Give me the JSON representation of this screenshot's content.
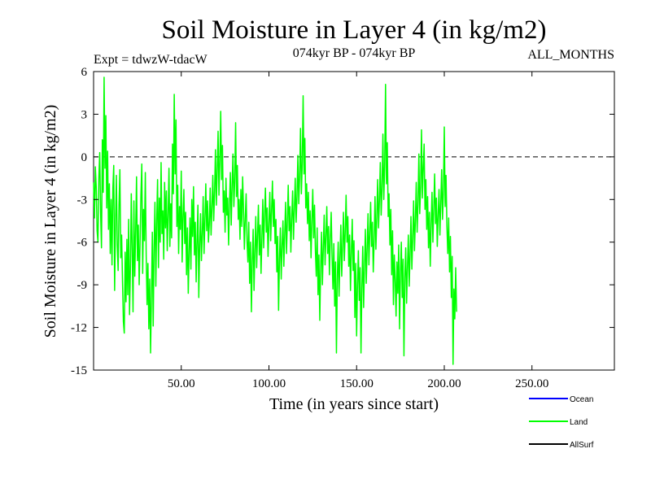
{
  "chart_data": {
    "type": "line",
    "title": "Soil Moisture in Layer 4 (in kg/m2)",
    "subtitle": "074kyr BP - 074kyr BP",
    "experiment": "Expt = tdwzW-tdacW",
    "season": "ALL_MONTHS",
    "xlabel": "Time (in years since start)",
    "ylabel": "Soil Moisture in Layer 4 (in kg/m2)",
    "xlim": [
      0,
      297
    ],
    "ylim": [
      -15,
      6
    ],
    "x_ticks": [
      50,
      100,
      150,
      200,
      250
    ],
    "x_tick_labels": [
      "50.00",
      "100.00",
      "150.00",
      "200.00",
      "250.00"
    ],
    "y_ticks": [
      6,
      3,
      0,
      -3,
      -6,
      -9,
      -12,
      -15
    ],
    "y_tick_labels": [
      "6",
      "3",
      "0",
      "-3",
      "-6",
      "-9",
      "-12",
      "-15"
    ],
    "zero_line": 0,
    "legend_position": "bottom-right",
    "series": [
      {
        "name": "Ocean",
        "color": "#0000ff",
        "values": []
      },
      {
        "name": "Land",
        "color": "#00ff00",
        "x_start": 0,
        "x_step": 0.5,
        "values": [
          -1.8,
          -4.3,
          -0.7,
          -2.1,
          -5.2,
          -6.0,
          -1.5,
          0.3,
          -3.9,
          -6.4,
          1.2,
          -2.5,
          5.6,
          -0.8,
          2.9,
          -3.6,
          0.4,
          -5.1,
          -1.9,
          -6.8,
          -3.0,
          -7.6,
          -2.2,
          -0.6,
          -9.4,
          -4.7,
          -1.3,
          -6.2,
          -8.0,
          -3.4,
          -0.9,
          -7.1,
          -5.5,
          -8.8,
          -11.6,
          -12.4,
          -6.7,
          -10.2,
          -5.8,
          -9.7,
          -4.4,
          -11.1,
          -7.9,
          -2.6,
          -6.5,
          -10.9,
          -3.1,
          -8.4,
          -5.2,
          -1.4,
          -7.3,
          -4.8,
          -9.0,
          -6.1,
          -2.7,
          -0.5,
          -8.2,
          -3.7,
          -5.9,
          -1.1,
          -6.9,
          -10.4,
          -7.5,
          -12.1,
          -8.6,
          -13.8,
          -9.8,
          -5.3,
          -11.9,
          -6.4,
          -3.2,
          -9.1,
          -4.5,
          -1.6,
          -7.8,
          -2.9,
          -6.0,
          -0.4,
          -5.4,
          -3.8,
          -7.2,
          -1.8,
          -5.0,
          -2.4,
          -6.6,
          -4.1,
          -0.8,
          -6.3,
          -3.3,
          -5.7,
          0.9,
          -2.6,
          4.4,
          -1.2,
          2.6,
          -4.9,
          -2.0,
          -6.8,
          -3.5,
          -5.1,
          -1.0,
          -7.4,
          -4.2,
          -2.3,
          -6.1,
          -3.9,
          -8.3,
          -5.0,
          -9.6,
          -6.7,
          -4.3,
          -7.9,
          -3.0,
          -5.6,
          -2.1,
          -6.9,
          -4.6,
          -8.8,
          -5.9,
          -3.4,
          -9.9,
          -6.2,
          -4.0,
          -7.3,
          -5.4,
          -2.8,
          -6.8,
          -4.4,
          -1.9,
          -5.2,
          -3.1,
          -6.0,
          -4.7,
          -2.2,
          -5.5,
          -3.6,
          -1.3,
          -4.5,
          -2.5,
          0.5,
          -3.4,
          -1.0,
          1.8,
          -2.7,
          -0.3,
          3.2,
          -1.6,
          0.8,
          -3.9,
          -2.4,
          -5.3,
          -1.5,
          -4.1,
          -2.9,
          -6.2,
          -3.3,
          -1.1,
          -4.8,
          -2.0,
          0.2,
          -3.5,
          -1.7,
          2.4,
          -2.8,
          -0.6,
          -4.4,
          -3.0,
          -5.8,
          -2.3,
          -4.9,
          -1.4,
          -3.7,
          -6.5,
          -4.3,
          -2.6,
          -5.9,
          -7.4,
          -4.6,
          -8.9,
          -6.0,
          -10.9,
          -7.3,
          -5.1,
          -9.4,
          -6.6,
          -4.2,
          -7.8,
          -5.5,
          -3.4,
          -6.9,
          -4.8,
          -8.2,
          -5.7,
          -3.0,
          -6.4,
          -4.1,
          -2.2,
          -5.3,
          -3.6,
          -7.0,
          -4.7,
          -2.5,
          -5.9,
          -3.8,
          -1.7,
          -4.9,
          -3.0,
          -6.1,
          -4.4,
          -8.1,
          -5.6,
          -10.8,
          -7.2,
          -5.0,
          -8.6,
          -6.3,
          -4.5,
          -7.7,
          -5.4,
          -3.2,
          -6.8,
          -4.6,
          -2.0,
          -5.2,
          -3.5,
          -6.7,
          -4.3,
          -2.4,
          -5.8,
          -3.7,
          -1.5,
          -4.6,
          -2.8,
          0.1,
          -3.3,
          -1.4,
          2.0,
          -2.6,
          -0.5,
          4.3,
          -1.2,
          1.3,
          -3.6,
          -1.9,
          -4.7,
          -2.5,
          -5.9,
          -3.8,
          -7.1,
          -4.5,
          -2.3,
          -5.7,
          -3.4,
          -6.6,
          -8.4,
          -5.0,
          -9.7,
          -6.9,
          -11.5,
          -7.8,
          -5.3,
          -9.0,
          -6.4,
          -4.1,
          -7.6,
          -5.6,
          -3.5,
          -6.8,
          -4.9,
          -8.3,
          -5.8,
          -3.9,
          -7.0,
          -9.3,
          -6.1,
          -10.5,
          -7.4,
          -13.8,
          -8.6,
          -6.0,
          -9.8,
          -7.1,
          -4.8,
          -8.4,
          -6.2,
          -3.9,
          -7.3,
          -5.3,
          -2.7,
          -6.0,
          -4.2,
          -7.7,
          -5.5,
          -9.4,
          -6.7,
          -4.4,
          -8.0,
          -5.9,
          -11.3,
          -7.5,
          -12.6,
          -9.0,
          -6.6,
          -10.1,
          -7.8,
          -13.8,
          -9.2,
          -6.3,
          -10.6,
          -7.7,
          -5.1,
          -8.9,
          -6.5,
          -4.0,
          -7.6,
          -5.4,
          -3.2,
          -6.3,
          -4.6,
          -8.1,
          -5.9,
          -2.8,
          -6.5,
          -4.3,
          -1.6,
          -5.0,
          -3.1,
          -0.4,
          -4.1,
          -2.2,
          1.6,
          -3.0,
          -0.7,
          5.1,
          -1.9,
          1.0,
          -4.2,
          -2.6,
          -6.2,
          -3.7,
          -8.3,
          -5.2,
          -10.4,
          -6.9,
          -8.6,
          -11.2,
          -7.4,
          -9.6,
          -6.2,
          -12.1,
          -8.1,
          -6.0,
          -9.9,
          -7.2,
          -14.0,
          -8.5,
          -6.4,
          -10.3,
          -7.8,
          -5.5,
          -9.1,
          -6.8,
          -4.2,
          -7.9,
          -5.7,
          -3.1,
          -6.6,
          -4.5,
          -1.8,
          -5.3,
          -3.4,
          0.2,
          -4.0,
          -2.1,
          1.9,
          -2.9,
          -0.8,
          0.9,
          -3.7,
          -1.6,
          -5.1,
          -2.8,
          -6.4,
          -3.9,
          -7.7,
          -4.8,
          -2.5,
          -6.0,
          -3.6,
          -1.2,
          -4.7,
          -2.9,
          -6.3,
          -4.1,
          -2.3,
          -5.5,
          -3.3,
          -0.9,
          -4.4,
          -2.4,
          2.1,
          -3.5,
          -1.3,
          -4.9,
          -6.8,
          -4.3,
          -8.1,
          -5.6,
          -9.9,
          -7.0,
          -14.6,
          -9.3,
          -11.4,
          -7.8,
          -10.9
        ]
      },
      {
        "name": "AllSurf",
        "color": "#000000",
        "values": []
      }
    ]
  }
}
